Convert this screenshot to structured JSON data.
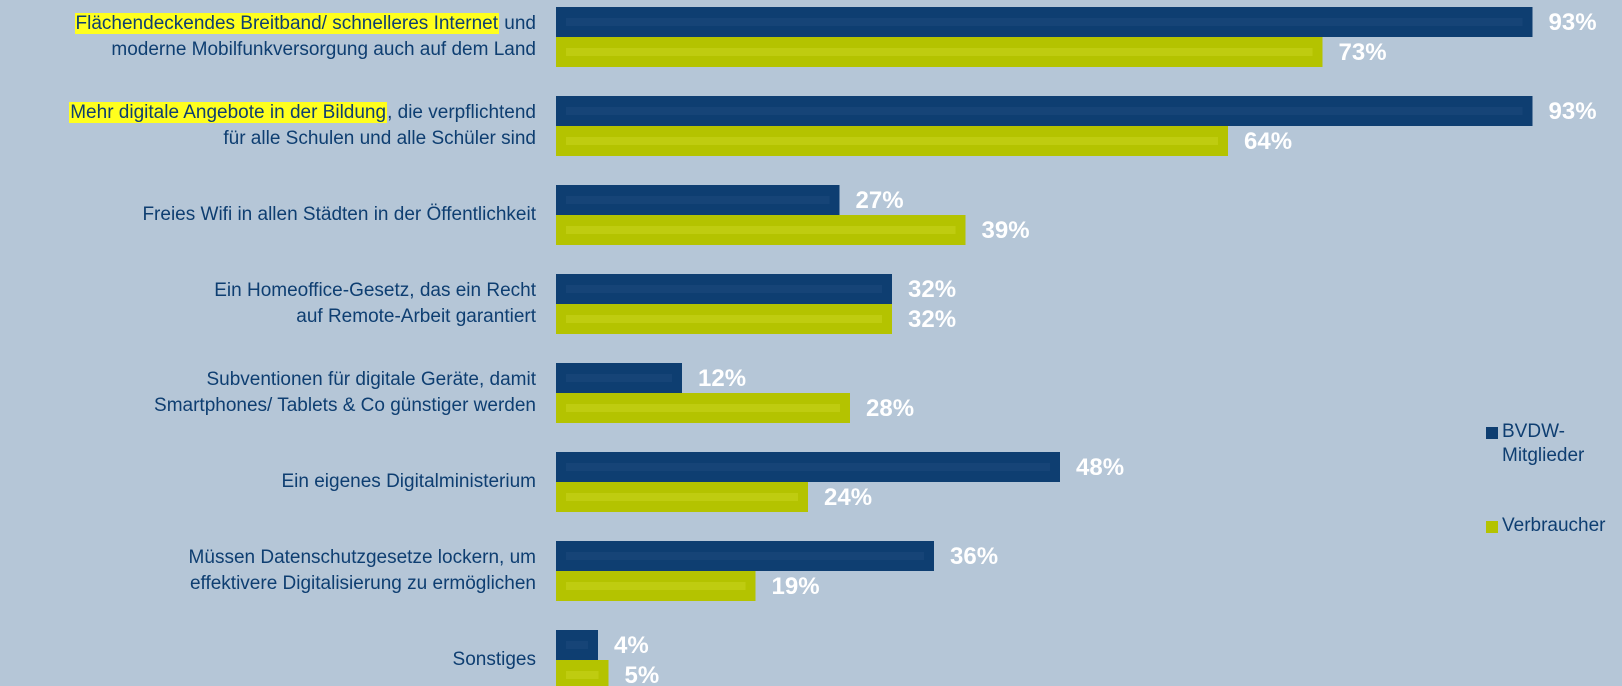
{
  "chart_data": {
    "type": "bar",
    "orientation": "horizontal",
    "xlim": [
      0,
      100
    ],
    "grid": false,
    "legend_position": "right",
    "value_suffix": "%",
    "colors": {
      "background": "#b5c6d7",
      "BVDW-Mitglieder": "#0e3e71",
      "Verbraucher": "#b4c300",
      "highlight": "#ffff1e",
      "value_label": "#ffffff",
      "text": "#0e3e71"
    },
    "categories": [
      {
        "lines": [
          [
            {
              "text": "Flächendeckendes Breitband/ schnelleres Internet",
              "hl": true
            },
            {
              "text": " und",
              "hl": false
            }
          ],
          [
            {
              "text": "moderne Mobilfunkversorgung auch auf dem Land",
              "hl": false
            }
          ]
        ]
      },
      {
        "lines": [
          [
            {
              "text": "Mehr digitale Angebote in der Bildung",
              "hl": true
            },
            {
              "text": ", die verpflichtend",
              "hl": false
            }
          ],
          [
            {
              "text": "für alle Schulen und alle Schüler sind",
              "hl": false
            }
          ]
        ]
      },
      {
        "lines": [
          [
            {
              "text": "Freies Wifi in allen Städten in der Öffentlichkeit",
              "hl": false
            }
          ]
        ]
      },
      {
        "lines": [
          [
            {
              "text": "Ein Homeoffice-Gesetz, das ein Recht",
              "hl": false
            }
          ],
          [
            {
              "text": "auf Remote-Arbeit garantiert",
              "hl": false
            }
          ]
        ]
      },
      {
        "lines": [
          [
            {
              "text": "Subventionen für digitale Geräte, damit",
              "hl": false
            }
          ],
          [
            {
              "text": "Smartphones/ Tablets & Co günstiger werden",
              "hl": false
            }
          ]
        ]
      },
      {
        "lines": [
          [
            {
              "text": "Ein eigenes Digitalministerium",
              "hl": false
            }
          ]
        ]
      },
      {
        "lines": [
          [
            {
              "text": "Müssen Datenschutzgesetze lockern, um",
              "hl": false
            }
          ],
          [
            {
              "text": "effektivere Digitalisierung zu ermöglichen",
              "hl": false
            }
          ]
        ]
      },
      {
        "lines": [
          [
            {
              "text": "Sonstiges",
              "hl": false
            }
          ]
        ]
      }
    ],
    "series": [
      {
        "name": "BVDW-Mitglieder",
        "values": [
          93,
          93,
          27,
          32,
          12,
          48,
          36,
          4
        ]
      },
      {
        "name": "Verbraucher",
        "values": [
          73,
          64,
          39,
          32,
          28,
          24,
          19,
          5
        ]
      }
    ],
    "legend": [
      {
        "lines": [
          "BVDW-",
          "Mitglieder"
        ]
      },
      {
        "lines": [
          "Verbraucher"
        ]
      }
    ]
  }
}
